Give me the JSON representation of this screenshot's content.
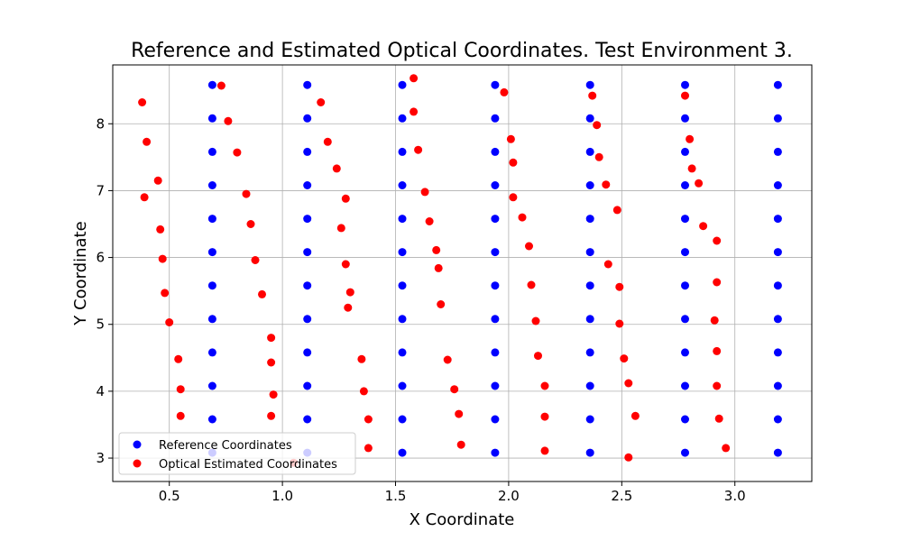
{
  "chart_data": {
    "type": "scatter",
    "title": "Reference and Estimated Optical Coordinates. Test Environment 3.",
    "xlabel": "X Coordinate",
    "ylabel": "Y Coordinate",
    "xlim": [
      0.25,
      3.34
    ],
    "ylim": [
      2.65,
      8.88
    ],
    "xticks": [
      0.5,
      1.0,
      1.5,
      2.0,
      2.5,
      3.0
    ],
    "xtick_labels": [
      "0.5",
      "1.0",
      "1.5",
      "2.0",
      "2.5",
      "3.0"
    ],
    "yticks": [
      3,
      4,
      5,
      6,
      7,
      8
    ],
    "ytick_labels": [
      "3",
      "4",
      "5",
      "6",
      "7",
      "8"
    ],
    "grid": true,
    "legend_position": "bottom-left",
    "series": [
      {
        "name": "Reference Coordinates",
        "color": "#0000ff",
        "x": [
          0.69,
          0.69,
          0.69,
          0.69,
          0.69,
          0.69,
          0.69,
          0.69,
          0.69,
          0.69,
          0.69,
          0.69,
          1.11,
          1.11,
          1.11,
          1.11,
          1.11,
          1.11,
          1.11,
          1.11,
          1.11,
          1.11,
          1.11,
          1.11,
          1.53,
          1.53,
          1.53,
          1.53,
          1.53,
          1.53,
          1.53,
          1.53,
          1.53,
          1.53,
          1.53,
          1.53,
          1.94,
          1.94,
          1.94,
          1.94,
          1.94,
          1.94,
          1.94,
          1.94,
          1.94,
          1.94,
          1.94,
          1.94,
          2.36,
          2.36,
          2.36,
          2.36,
          2.36,
          2.36,
          2.36,
          2.36,
          2.36,
          2.36,
          2.36,
          2.36,
          2.78,
          2.78,
          2.78,
          2.78,
          2.78,
          2.78,
          2.78,
          2.78,
          2.78,
          2.78,
          2.78,
          2.78,
          3.19,
          3.19,
          3.19,
          3.19,
          3.19,
          3.19,
          3.19,
          3.19,
          3.19,
          3.19,
          3.19,
          3.19
        ],
        "y": [
          3.58,
          4.08,
          4.58,
          5.08,
          5.58,
          6.08,
          6.58,
          7.08,
          7.58,
          8.08,
          8.58,
          3.08,
          3.58,
          4.08,
          4.58,
          5.08,
          5.58,
          6.08,
          6.58,
          7.08,
          7.58,
          8.08,
          8.58,
          3.08,
          3.58,
          4.08,
          4.58,
          5.08,
          5.58,
          6.08,
          6.58,
          7.08,
          7.58,
          8.08,
          8.58,
          3.08,
          3.58,
          4.08,
          4.58,
          5.08,
          5.58,
          6.08,
          6.58,
          7.08,
          7.58,
          8.08,
          8.58,
          3.08,
          3.58,
          4.08,
          4.58,
          5.08,
          5.58,
          6.08,
          6.58,
          7.08,
          7.58,
          8.08,
          8.58,
          3.08,
          3.58,
          4.08,
          4.58,
          5.08,
          5.58,
          6.08,
          6.58,
          7.08,
          7.58,
          8.08,
          8.58,
          3.08,
          3.58,
          4.08,
          4.58,
          5.08,
          5.58,
          6.08,
          6.58,
          7.08,
          7.58,
          8.08,
          8.58,
          3.08
        ]
      },
      {
        "name": "Optical Estimated Coordinates",
        "color": "#ff0000",
        "x": [
          0.38,
          0.4,
          0.45,
          0.39,
          0.46,
          0.47,
          0.48,
          0.5,
          0.54,
          0.55,
          0.55,
          0.73,
          0.76,
          0.8,
          0.84,
          0.86,
          0.88,
          0.91,
          0.95,
          0.95,
          0.96,
          0.95,
          1.05,
          1.17,
          1.2,
          1.24,
          1.28,
          1.26,
          1.28,
          1.3,
          1.29,
          1.35,
          1.36,
          1.38,
          1.38,
          1.58,
          1.58,
          1.6,
          1.63,
          1.65,
          1.68,
          1.69,
          1.7,
          1.73,
          1.76,
          1.78,
          1.79,
          1.98,
          2.01,
          2.02,
          2.02,
          2.06,
          2.09,
          2.1,
          2.12,
          2.13,
          2.16,
          2.16,
          2.16,
          2.37,
          2.39,
          2.4,
          2.43,
          2.44,
          2.48,
          2.49,
          2.49,
          2.51,
          2.53,
          2.56,
          2.53,
          2.78,
          2.8,
          2.81,
          2.84,
          2.86,
          2.92,
          2.92,
          2.91,
          2.92,
          2.92,
          2.93,
          2.96
        ],
        "y": [
          8.32,
          7.73,
          7.15,
          6.9,
          6.42,
          5.98,
          5.47,
          5.03,
          4.48,
          4.03,
          3.63,
          8.57,
          8.04,
          7.57,
          6.95,
          6.5,
          5.96,
          5.45,
          4.8,
          4.43,
          3.95,
          3.63,
          2.93,
          8.32,
          7.73,
          7.33,
          6.88,
          6.44,
          5.9,
          5.48,
          5.25,
          4.48,
          4.0,
          3.58,
          3.15,
          8.68,
          8.18,
          7.61,
          6.98,
          6.54,
          6.11,
          5.84,
          5.3,
          4.47,
          4.03,
          3.66,
          3.2,
          8.47,
          7.77,
          7.42,
          6.9,
          6.6,
          6.17,
          5.59,
          5.05,
          4.53,
          4.08,
          3.62,
          3.11,
          8.42,
          7.98,
          7.5,
          7.09,
          5.9,
          6.71,
          5.56,
          5.01,
          4.49,
          4.12,
          3.63,
          3.01,
          8.42,
          7.77,
          7.33,
          7.11,
          6.47,
          6.25,
          5.63,
          5.06,
          4.6,
          4.08,
          3.59,
          3.15
        ]
      }
    ]
  }
}
